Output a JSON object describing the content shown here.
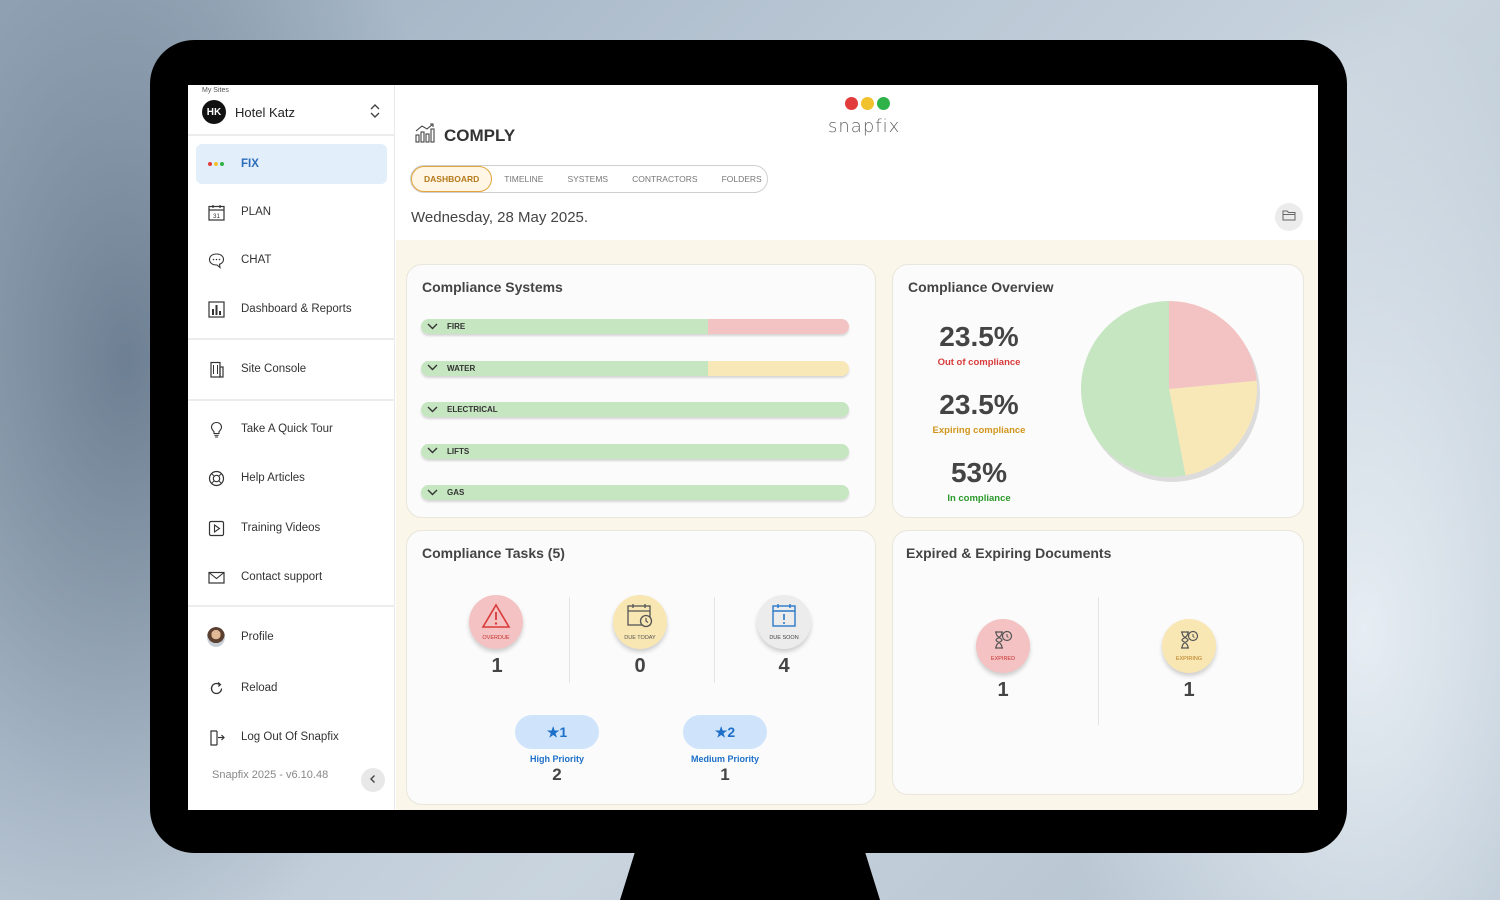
{
  "sidebar": {
    "my_sites_label": "My Sites",
    "site_initials": "HK",
    "site_name": "Hotel Katz",
    "items": [
      {
        "label": "FIX"
      },
      {
        "label": "PLAN"
      },
      {
        "label": "CHAT"
      },
      {
        "label": "Dashboard & Reports"
      },
      {
        "label": "Site Console"
      },
      {
        "label": "Take A Quick Tour"
      },
      {
        "label": "Help Articles"
      },
      {
        "label": "Training Videos"
      },
      {
        "label": "Contact support"
      },
      {
        "label": "Profile"
      },
      {
        "label": "Reload"
      },
      {
        "label": "Log Out Of Snapfix"
      }
    ],
    "version": "Snapfix 2025  -  v6.10.48",
    "calendar_day": "31"
  },
  "brand": {
    "name": "snapfix",
    "dot_colors": [
      "#e23b3b",
      "#f2c12e",
      "#2fb24a"
    ]
  },
  "header": {
    "title": "COMPLY",
    "tabs": [
      "DASHBOARD",
      "TIMELINE",
      "SYSTEMS",
      "CONTRACTORS",
      "FOLDERS"
    ],
    "date": "Wednesday, 28 May 2025."
  },
  "systems": {
    "title": "Compliance Systems",
    "items": [
      {
        "name": "FIRE",
        "green": 0.67,
        "red": 0.33,
        "yellow": 0
      },
      {
        "name": "WATER",
        "green": 0.67,
        "red": 0,
        "yellow": 0.33
      },
      {
        "name": "ELECTRICAL",
        "green": 1,
        "red": 0,
        "yellow": 0
      },
      {
        "name": "LIFTS",
        "green": 1,
        "red": 0,
        "yellow": 0
      },
      {
        "name": "GAS",
        "green": 1,
        "red": 0,
        "yellow": 0
      }
    ]
  },
  "overview": {
    "title": "Compliance Overview",
    "out_pct": "23.5%",
    "out_label": "Out of compliance",
    "expiring_pct": "23.5%",
    "expiring_label": "Expiring compliance",
    "in_pct": "53%",
    "in_label": "In compliance",
    "colors": {
      "red": "#f3c2c2",
      "yellow": "#f8e7b7",
      "green": "#c6e6c1",
      "red_text": "#d93a3a",
      "yellow_text": "#d1951b",
      "green_text": "#2b9a2b"
    }
  },
  "chart_data": {
    "type": "pie",
    "categories": [
      "Out of compliance",
      "Expiring compliance",
      "In compliance"
    ],
    "values": [
      23.5,
      23.5,
      53
    ]
  },
  "tasks": {
    "title": "Compliance Tasks (5)",
    "items": [
      {
        "caption": "OVERDUE",
        "count": "1"
      },
      {
        "caption": "DUE TODAY",
        "count": "0"
      },
      {
        "caption": "DUE SOON",
        "count": "4"
      }
    ],
    "priorities": [
      {
        "badge": "1",
        "label": "High Priority",
        "count": "2"
      },
      {
        "badge": "2",
        "label": "Medium Priority",
        "count": "1"
      }
    ]
  },
  "documents": {
    "title": "Expired & Expiring Documents",
    "items": [
      {
        "caption": "EXPIRED",
        "count": "1"
      },
      {
        "caption": "EXPIRING",
        "count": "1"
      }
    ]
  }
}
